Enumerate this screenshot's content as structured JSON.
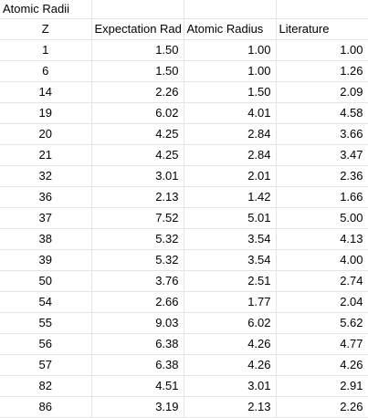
{
  "sheet": {
    "title": "Atomic Radii",
    "headers": [
      "Z",
      "Expectation Rad",
      "Atomic Radius",
      "Literature"
    ],
    "rows": [
      [
        "1",
        "1.50",
        "1.00",
        "1.00"
      ],
      [
        "6",
        "1.50",
        "1.00",
        "1.26"
      ],
      [
        "14",
        "2.26",
        "1.50",
        "2.09"
      ],
      [
        "19",
        "6.02",
        "4.01",
        "4.58"
      ],
      [
        "20",
        "4.25",
        "2.84",
        "3.66"
      ],
      [
        "21",
        "4.25",
        "2.84",
        "3.47"
      ],
      [
        "32",
        "3.01",
        "2.01",
        "2.36"
      ],
      [
        "36",
        "2.13",
        "1.42",
        "1.66"
      ],
      [
        "37",
        "7.52",
        "5.01",
        "5.00"
      ],
      [
        "38",
        "5.32",
        "3.54",
        "4.13"
      ],
      [
        "39",
        "5.32",
        "3.54",
        "4.00"
      ],
      [
        "50",
        "3.76",
        "2.51",
        "2.74"
      ],
      [
        "54",
        "2.66",
        "1.77",
        "2.04"
      ],
      [
        "55",
        "9.03",
        "6.02",
        "5.62"
      ],
      [
        "56",
        "6.38",
        "4.26",
        "4.77"
      ],
      [
        "57",
        "6.38",
        "4.26",
        "4.26"
      ],
      [
        "82",
        "4.51",
        "3.01",
        "2.91"
      ],
      [
        "86",
        "3.19",
        "2.13",
        "2.26"
      ]
    ],
    "colors": {
      "gridline": "#e2e3e3",
      "text": "#000000",
      "background": "#ffffff"
    }
  }
}
